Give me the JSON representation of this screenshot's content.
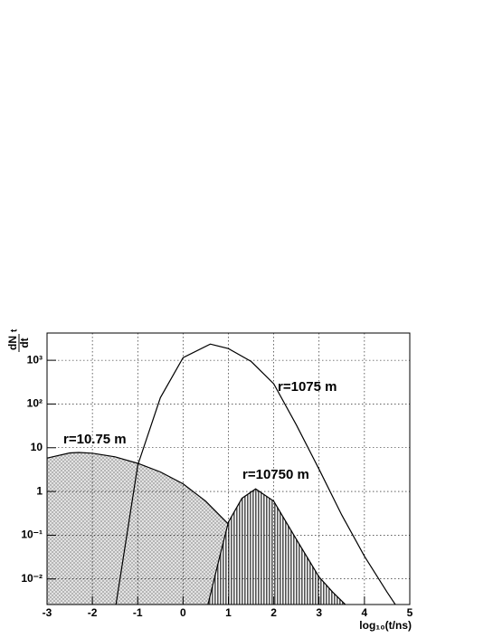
{
  "chart_data": {
    "type": "line",
    "xlabel": "log₁₀(t/ns)",
    "ylabel": {
      "numerator": "dN",
      "subscript": "t",
      "denominator": "dt"
    },
    "log_y": true,
    "grid": true,
    "xlim": [
      -3,
      5
    ],
    "xticks": [
      -3,
      -2,
      -1,
      0,
      1,
      2,
      3,
      4,
      5
    ],
    "ylim": [
      0.0026,
      4200
    ],
    "yticks": [
      {
        "value": 0.01,
        "label": "10⁻²"
      },
      {
        "value": 0.1,
        "label": "10⁻¹"
      },
      1,
      10,
      {
        "value": 100,
        "label": "10²"
      },
      {
        "value": 1000,
        "label": "10³"
      }
    ],
    "series": [
      {
        "name": "r=10.75 m",
        "color": "#000000",
        "filled": true,
        "x": [
          -3,
          -2.5,
          -2.3,
          -2,
          -1.5,
          -1,
          -0.5,
          0,
          0.5,
          1,
          1.5,
          2,
          2.2
        ],
        "values": [
          5.8,
          7.6,
          7.8,
          7.5,
          6.2,
          4.4,
          2.8,
          1.5,
          0.6,
          0.18,
          0.04,
          0.006,
          0.0026
        ]
      },
      {
        "name": "r=1075 m",
        "color": "#000000",
        "filled": false,
        "x": [
          -1.48,
          -1.3,
          -1,
          -0.5,
          0,
          0.6,
          1,
          1.5,
          2,
          2.5,
          3,
          3.5,
          4,
          4.5,
          4.68
        ],
        "values": [
          0.0026,
          0.04,
          4,
          140,
          1150,
          2350,
          1850,
          940,
          290,
          33,
          3.2,
          0.29,
          0.033,
          0.005,
          0.0026
        ]
      },
      {
        "name": "r=10750 m",
        "color": "#000000",
        "filled": true,
        "x": [
          0.55,
          0.8,
          1,
          1.3,
          1.6,
          2,
          2.5,
          3,
          3.3,
          3.58
        ],
        "values": [
          0.0026,
          0.03,
          0.2,
          0.7,
          1.15,
          0.6,
          0.08,
          0.011,
          0.005,
          0.0026
        ]
      }
    ]
  }
}
